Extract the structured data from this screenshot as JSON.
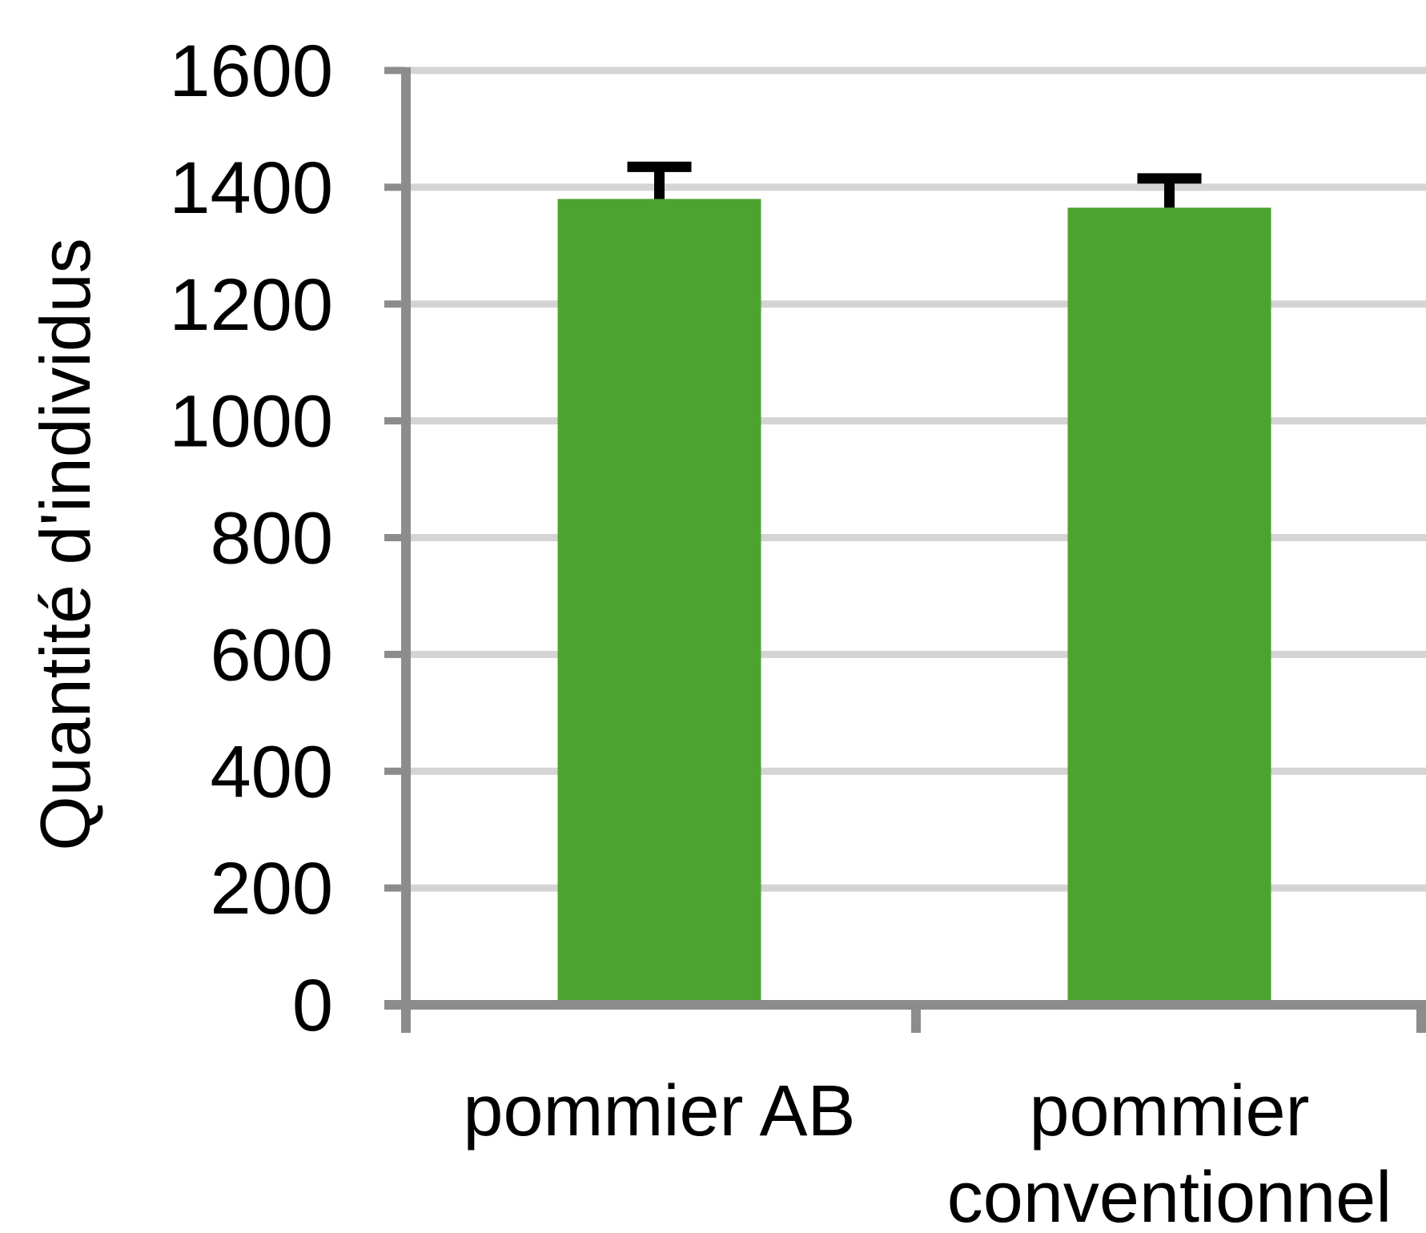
{
  "chart_data": {
    "type": "bar",
    "title": "",
    "xlabel": "",
    "ylabel": "Quantité d'individus",
    "categories": [
      [
        "pommier AB"
      ],
      [
        "pommier",
        "conventionnel"
      ]
    ],
    "values": [
      1380,
      1365
    ],
    "error_bars": [
      55,
      50
    ],
    "ylim": [
      0,
      1600
    ],
    "yticks": [
      0,
      200,
      400,
      600,
      800,
      1000,
      1200,
      1400,
      1600
    ],
    "grid": true,
    "legend": "none",
    "colors": {
      "bar": "#4da32f",
      "error_bar": "#000000",
      "axis": "#8c8c8c",
      "grid": "#d4d4d4"
    }
  }
}
